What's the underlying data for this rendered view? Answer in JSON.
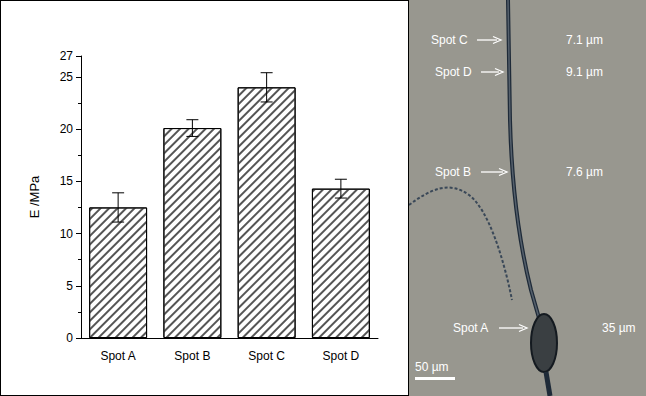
{
  "chart_data": {
    "type": "bar",
    "categories": [
      "Spot A",
      "Spot B",
      "Spot C",
      "Spot D"
    ],
    "values": [
      12.5,
      20.1,
      24.0,
      14.3
    ],
    "errors": [
      1.4,
      0.8,
      1.4,
      0.9
    ],
    "ylabel": "E /MPa",
    "ylim": [
      0,
      27
    ],
    "yticks": [
      0,
      5,
      10,
      15,
      20,
      25
    ],
    "color": "#555555",
    "grid": false
  },
  "micrograph": {
    "annotations": [
      {
        "label": "Spot C",
        "text": "7.1 µm"
      },
      {
        "label": "Spot D",
        "text": "9.1 µm"
      },
      {
        "label": "Spot B",
        "text": "7.6 µm"
      },
      {
        "label": "Spot A",
        "text": "35 µm"
      }
    ],
    "scale_bar": "50 µm"
  }
}
